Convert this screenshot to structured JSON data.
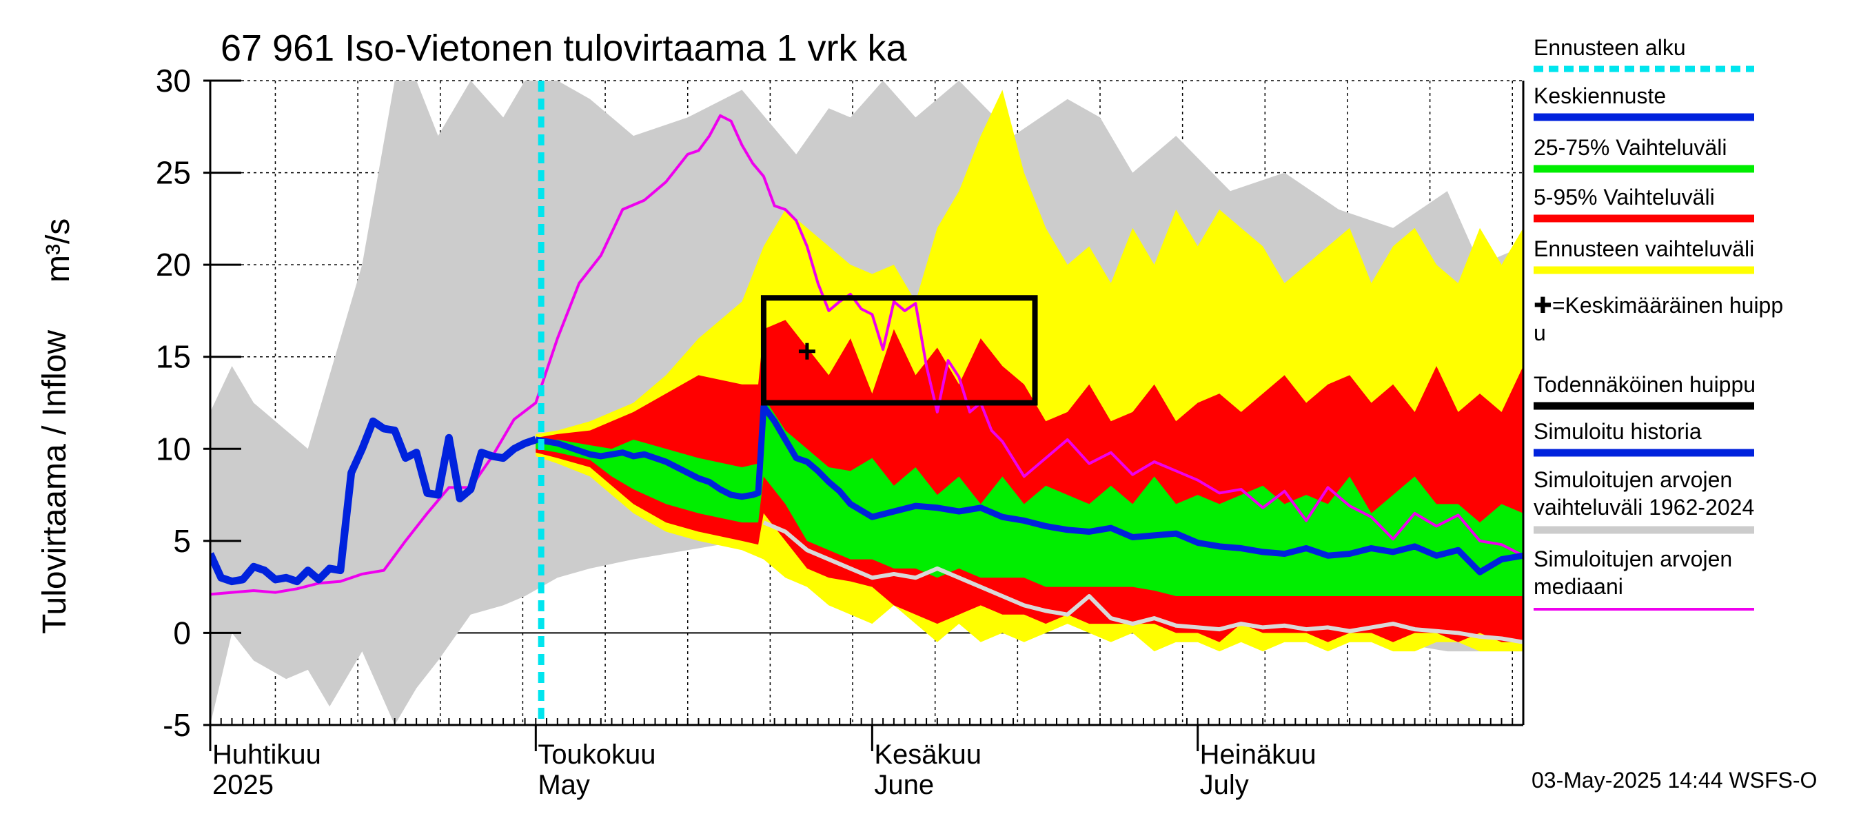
{
  "chart_data": {
    "type": "area",
    "title": "67 961 Iso-Vietonen tulovirtaama 1 vrk ka",
    "ylabel_left": "Tulovirtaama / Inflow",
    "ylabel_unit": "m³/s",
    "ylim": [
      -5,
      30
    ],
    "yticks": [
      -5,
      0,
      5,
      10,
      15,
      20,
      25,
      30
    ],
    "x_unit": "day of year 2025 (1 = 1 Apr)",
    "xlim": [
      1,
      122
    ],
    "month_labels": [
      {
        "fi": "Huhtikuu",
        "en": "2025",
        "day": 1
      },
      {
        "fi": "Toukokuu",
        "en": "May",
        "day": 31
      },
      {
        "fi": "Kesäkuu",
        "en": "June",
        "day": 62
      },
      {
        "fi": "Heinäkuu",
        "en": "July",
        "day": 92
      }
    ],
    "forecast_start_day": 31.5,
    "probable_peak_box": {
      "x0": 52,
      "x1": 77,
      "y0": 12.5,
      "y1": 18.2
    },
    "mean_peak": {
      "day": 56,
      "value": 15.3
    },
    "legend": [
      {
        "label": "Ennusteen alku",
        "color": "#00e5ee",
        "style": "dashed"
      },
      {
        "label": "Keskiennuste",
        "color": "#0022dd",
        "style": "line"
      },
      {
        "label": "25-75% Vaihteluväli",
        "color": "#00ee00",
        "style": "line"
      },
      {
        "label": "5-95% Vaihteluväli",
        "color": "#ff0000",
        "style": "line"
      },
      {
        "label": "Ennusteen vaihteluväli",
        "color": "#ffff00",
        "style": "line"
      },
      {
        "label": "✚=Keskimääräinen huipp",
        "label2": "u",
        "color": "",
        "style": "none"
      },
      {
        "label": "Todennäköinen huippu",
        "color": "#000000",
        "style": "line"
      },
      {
        "label": "Simuloitu historia",
        "color": "#0022dd",
        "style": "line"
      },
      {
        "label": "Simuloitujen arvojen",
        "label2": "vaihteluväli 1962-2024",
        "color": "#cccccc",
        "style": "line"
      },
      {
        "label": "Simuloitujen arvojen",
        "label2": "mediaani",
        "color": "#ee00ee",
        "style": "thin"
      }
    ],
    "series": {
      "hist_range_1962_2024": {
        "x": [
          1,
          3,
          5,
          8,
          10,
          12,
          15,
          18,
          20,
          22,
          25,
          28,
          30,
          33,
          36,
          40,
          45,
          50,
          55,
          58,
          60,
          63,
          66,
          70,
          75,
          80,
          83,
          86,
          90,
          95,
          100,
          105,
          110,
          115,
          118,
          122
        ],
        "upper": [
          12,
          14.5,
          12.5,
          11,
          10,
          14,
          20,
          30,
          30,
          27,
          30,
          28,
          30,
          30,
          29,
          27,
          28,
          29.5,
          26,
          28.5,
          28,
          30,
          28,
          30,
          27,
          29,
          28,
          25,
          27,
          24,
          25,
          23,
          22,
          24,
          20,
          21
        ],
        "lower": [
          -5,
          0,
          -1.5,
          -2.5,
          -2,
          -4,
          -1,
          -5,
          -3,
          -1.5,
          1,
          1.5,
          2,
          3,
          3.5,
          4,
          4.5,
          5,
          4.5,
          4,
          4,
          3.5,
          2.5,
          2,
          1.5,
          0.5,
          0,
          0,
          -0.5,
          -0.5,
          -0.5,
          -0.5,
          -0.5,
          -1,
          -1,
          -1
        ]
      },
      "forecast_range": {
        "x": [
          31,
          33,
          36,
          38,
          40,
          43,
          46,
          50,
          52,
          54,
          56,
          58,
          60,
          62,
          64,
          66,
          68,
          70,
          72,
          74,
          76,
          78,
          80,
          82,
          84,
          86,
          88,
          90,
          92,
          94,
          96,
          98,
          100,
          102,
          104,
          106,
          108,
          110,
          112,
          114,
          116,
          118,
          120,
          122
        ],
        "upper": [
          10.8,
          11,
          11.5,
          12,
          12.5,
          14,
          16,
          18,
          21,
          23,
          22,
          21,
          20,
          19.5,
          20,
          18,
          22,
          24,
          27,
          29.5,
          25,
          22,
          20,
          21,
          19,
          22,
          20,
          23,
          21,
          23,
          22,
          21,
          19,
          20,
          21,
          22,
          19,
          21,
          22,
          20,
          19,
          22,
          20,
          22
        ],
        "lower": [
          9.6,
          9.2,
          8.5,
          7.5,
          6.5,
          5.5,
          5,
          4.5,
          4,
          3,
          2.5,
          1.5,
          1,
          0.5,
          1.5,
          0.5,
          -0.5,
          0.5,
          -0.5,
          0,
          -0.5,
          0,
          0.5,
          0,
          -0.5,
          0,
          -1,
          -0.5,
          -0.5,
          -1,
          -0.5,
          -1,
          -0.5,
          -0.5,
          -1,
          -0.5,
          -0.5,
          -1,
          -1,
          -0.5,
          -0.5,
          -1,
          -1,
          -1
        ]
      },
      "range_5_95": {
        "x": [
          31,
          33,
          36,
          38,
          40,
          43,
          46,
          50,
          51.5,
          52,
          54,
          56,
          58,
          60,
          62,
          64,
          66,
          68,
          70,
          72,
          74,
          76,
          78,
          80,
          82,
          84,
          86,
          88,
          90,
          92,
          94,
          96,
          98,
          100,
          102,
          104,
          106,
          108,
          110,
          112,
          114,
          116,
          118,
          120,
          122
        ],
        "upper": [
          10.6,
          10.8,
          11,
          11.5,
          12,
          13,
          14,
          13.5,
          13.5,
          16.5,
          17,
          15.5,
          14,
          16,
          13,
          16.5,
          14,
          15.5,
          13.5,
          16,
          14.5,
          13.5,
          11.5,
          12,
          13.5,
          11.5,
          12,
          13.5,
          11.5,
          12.5,
          13,
          12,
          13,
          14,
          12.5,
          13.5,
          14,
          12.5,
          13.5,
          12,
          14.5,
          12,
          13,
          12,
          14.5
        ],
        "lower": [
          9.8,
          9.5,
          9,
          8,
          7,
          6,
          5.5,
          5,
          4.8,
          6.5,
          5,
          3.5,
          3,
          2.8,
          2.5,
          1.5,
          1,
          0.5,
          1,
          1.5,
          1,
          1,
          0.5,
          1,
          0.5,
          0.5,
          0.5,
          0.5,
          0,
          0,
          -0.5,
          0.5,
          0,
          0,
          0,
          -0.5,
          0,
          0,
          -0.5,
          0,
          0,
          -0.5,
          0,
          -0.5,
          -0.5
        ]
      },
      "range_25_75": {
        "x": [
          31,
          33,
          36,
          38,
          40,
          43,
          46,
          50,
          51.5,
          52,
          54,
          56,
          58,
          60,
          62,
          64,
          66,
          68,
          70,
          72,
          74,
          76,
          78,
          80,
          82,
          84,
          86,
          88,
          90,
          92,
          94,
          96,
          98,
          100,
          102,
          104,
          106,
          108,
          110,
          112,
          114,
          116,
          118,
          120,
          122
        ],
        "upper": [
          10.4,
          10.5,
          10.2,
          10,
          10.5,
          10,
          9.5,
          9,
          9.2,
          12.8,
          11,
          10,
          9,
          8.8,
          9.5,
          8,
          9,
          7.5,
          8.5,
          7,
          8.5,
          7,
          8,
          7.5,
          7,
          8,
          7,
          8.5,
          7,
          7.5,
          7,
          7.5,
          8,
          7,
          7.5,
          7,
          8.5,
          6.5,
          7.5,
          8.5,
          7,
          7,
          6,
          7,
          6.5
        ],
        "lower": [
          10,
          9.8,
          9.4,
          8.5,
          7.8,
          7,
          6.5,
          6,
          6,
          8.5,
          7,
          5,
          4.5,
          4,
          4,
          3.5,
          3.5,
          3,
          3.5,
          3,
          3,
          3,
          2.5,
          2.5,
          2.5,
          2.5,
          2.5,
          2.3,
          2,
          2,
          2,
          2,
          2,
          2,
          2,
          2,
          2,
          2,
          2,
          2,
          2,
          2,
          2,
          2,
          2
        ]
      },
      "simulated_history": {
        "x": [
          1,
          2,
          3,
          4,
          5,
          6,
          7,
          8,
          9,
          10,
          11,
          12,
          13,
          14,
          15,
          16,
          17,
          18,
          19,
          20,
          21,
          22,
          23,
          24,
          25,
          26,
          27,
          28,
          29,
          30,
          31
        ],
        "y": [
          4.3,
          3,
          2.8,
          2.9,
          3.6,
          3.4,
          2.9,
          3,
          2.8,
          3.4,
          2.9,
          3.5,
          3.4,
          8.7,
          10,
          11.5,
          11.1,
          11,
          9.5,
          9.8,
          7.6,
          7.5,
          10.6,
          7.3,
          7.8,
          9.8,
          9.6,
          9.5,
          10,
          10.3,
          10.5
        ]
      },
      "median_forecast": {
        "x": [
          31,
          32,
          33,
          34,
          35,
          36,
          37,
          38,
          39,
          40,
          41,
          42,
          43,
          44,
          45,
          46,
          47,
          48,
          49,
          50,
          51,
          51.5,
          52,
          53,
          54,
          55,
          56,
          57,
          58,
          59,
          60,
          62,
          64,
          66,
          68,
          70,
          72,
          74,
          76,
          78,
          80,
          82,
          84,
          86,
          88,
          90,
          92,
          94,
          96,
          98,
          100,
          102,
          104,
          106,
          108,
          110,
          112,
          114,
          116,
          118,
          120,
          122
        ],
        "y": [
          10.5,
          10.4,
          10.3,
          10.1,
          9.9,
          9.7,
          9.6,
          9.7,
          9.8,
          9.6,
          9.7,
          9.5,
          9.3,
          9,
          8.7,
          8.4,
          8.2,
          7.8,
          7.5,
          7.4,
          7.5,
          7.6,
          12.3,
          11.5,
          10.5,
          9.5,
          9.3,
          8.8,
          8.2,
          7.7,
          7,
          6.3,
          6.6,
          6.9,
          6.8,
          6.6,
          6.8,
          6.3,
          6.1,
          5.8,
          5.6,
          5.5,
          5.7,
          5.2,
          5.3,
          5.4,
          4.9,
          4.7,
          4.6,
          4.4,
          4.3,
          4.6,
          4.2,
          4.3,
          4.6,
          4.4,
          4.7,
          4.2,
          4.5,
          3.3,
          4,
          4.2
        ]
      },
      "hist_median_gray": {
        "x": [
          52,
          54,
          56,
          58,
          60,
          62,
          64,
          66,
          68,
          70,
          72,
          74,
          76,
          78,
          80,
          82,
          84,
          86,
          88,
          90,
          92,
          94,
          96,
          98,
          100,
          102,
          104,
          106,
          108,
          110,
          112,
          114,
          116,
          118,
          120,
          122
        ],
        "y": [
          6,
          5.5,
          4.5,
          4,
          3.5,
          3,
          3.2,
          3,
          3.5,
          3,
          2.5,
          2,
          1.5,
          1.2,
          1,
          2,
          0.8,
          0.5,
          0.8,
          0.4,
          0.3,
          0.2,
          0.5,
          0.3,
          0.4,
          0.2,
          0.3,
          0.1,
          0.3,
          0.5,
          0.2,
          0.1,
          0,
          -0.2,
          -0.3,
          -0.5
        ]
      },
      "hist_median_magenta": {
        "x": [
          1,
          3,
          5,
          7,
          9,
          11,
          13,
          15,
          17,
          19,
          21,
          23,
          25,
          27,
          29,
          31,
          33,
          35,
          37,
          39,
          41,
          43,
          45,
          46,
          47,
          48,
          49,
          50,
          51,
          52,
          53,
          54,
          55,
          56,
          57,
          58,
          59,
          60,
          61,
          62,
          63,
          64,
          65,
          66,
          67,
          68,
          69,
          70,
          71,
          72,
          73,
          74,
          76,
          78,
          80,
          82,
          84,
          86,
          88,
          90,
          92,
          94,
          96,
          98,
          100,
          102,
          104,
          106,
          108,
          110,
          112,
          114,
          116,
          118,
          120,
          122
        ],
        "y": [
          2.1,
          2.2,
          2.3,
          2.2,
          2.4,
          2.7,
          2.8,
          3.2,
          3.4,
          5,
          6.5,
          7.9,
          7.9,
          9.6,
          11.6,
          12.5,
          16,
          19,
          20.5,
          23,
          23.5,
          24.5,
          26,
          26.2,
          27,
          28.1,
          27.8,
          26.5,
          25.5,
          24.8,
          23.2,
          23,
          22.4,
          21,
          19,
          17.5,
          18,
          18.4,
          17.6,
          17.3,
          15.4,
          18,
          17.5,
          17.9,
          14.5,
          12,
          14.8,
          13.9,
          12,
          12.5,
          11,
          10.4,
          8.5,
          9.5,
          10.5,
          9.2,
          9.8,
          8.6,
          9.3,
          8.8,
          8.3,
          7.6,
          7.8,
          6.8,
          7.7,
          6.1,
          7.9,
          6.9,
          6.3,
          5.1,
          6.5,
          5.8,
          6.4,
          5,
          4.8,
          4.2
        ]
      }
    }
  },
  "footer": {
    "timestamp": "03-May-2025 14:44 WSFS-O"
  },
  "colors": {
    "hist_range": "#cccccc",
    "forecast_range": "#ffff00",
    "range_5_95": "#ff0000",
    "range_25_75": "#00ee00",
    "mean": "#0022dd",
    "median_magenta": "#ee00ee",
    "forecast_start": "#00e5ee"
  }
}
